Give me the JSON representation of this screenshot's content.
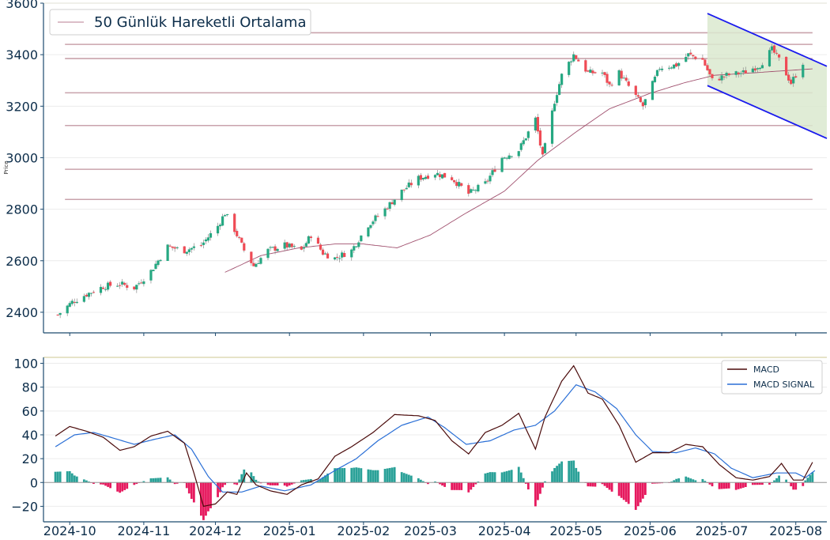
{
  "colors": {
    "up": "#26a882",
    "down": "#ef4b55",
    "wick": "#8a8a8a",
    "ma": "#a0506e",
    "hline": "#c9a3ac",
    "channel": "#1a1aee",
    "channel_fill": "#dbe9cf",
    "macd": "#4a0a0a",
    "signal": "#2a6fd6",
    "hist_pos": "#2aa198",
    "hist_neg": "#e6195e",
    "axis": "#1c4a6e",
    "grid": "#ececec",
    "top_border": "#d8d2a8"
  },
  "chart_data": [
    {
      "type": "candlestick",
      "title": "",
      "ylabel": "Price",
      "ylim": [
        2320,
        3600
      ],
      "yticks": [
        2400,
        2600,
        2800,
        3000,
        3200,
        3400,
        3600
      ],
      "xlim": [
        "2024-09-20",
        "2025-08-14"
      ],
      "legend": {
        "position": "top-left",
        "entries": [
          "50 Günlük Hareketli Ortalama"
        ]
      },
      "horizontal_levels": [
        3485,
        3440,
        3385,
        3252,
        3125,
        2955,
        2838
      ],
      "price_keypoints": [
        [
          "2024-09-26",
          2390
        ],
        [
          "2024-10-02",
          2440
        ],
        [
          "2024-10-08",
          2470
        ],
        [
          "2024-10-15",
          2500
        ],
        [
          "2024-10-22",
          2510
        ],
        [
          "2024-10-28",
          2495
        ],
        [
          "2024-11-04",
          2560
        ],
        [
          "2024-11-11",
          2655
        ],
        [
          "2024-11-18",
          2640
        ],
        [
          "2024-11-25",
          2660
        ],
        [
          "2024-12-02",
          2735
        ],
        [
          "2024-12-05",
          2785
        ],
        [
          "2024-12-09",
          2720
        ],
        [
          "2024-12-13",
          2640
        ],
        [
          "2024-12-17",
          2580
        ],
        [
          "2024-12-23",
          2640
        ],
        [
          "2024-12-30",
          2660
        ],
        [
          "2025-01-06",
          2640
        ],
        [
          "2025-01-10",
          2700
        ],
        [
          "2025-01-15",
          2630
        ],
        [
          "2025-01-20",
          2610
        ],
        [
          "2025-01-27",
          2640
        ],
        [
          "2025-02-03",
          2740
        ],
        [
          "2025-02-10",
          2800
        ],
        [
          "2025-02-17",
          2870
        ],
        [
          "2025-02-24",
          2920
        ],
        [
          "2025-03-03",
          2940
        ],
        [
          "2025-03-10",
          2920
        ],
        [
          "2025-03-17",
          2860
        ],
        [
          "2025-03-24",
          2900
        ],
        [
          "2025-03-31",
          3000
        ],
        [
          "2025-04-07",
          3030
        ],
        [
          "2025-04-14",
          3150
        ],
        [
          "2025-04-17",
          3000
        ],
        [
          "2025-04-22",
          3220
        ],
        [
          "2025-04-25",
          3320
        ],
        [
          "2025-04-30",
          3400
        ],
        [
          "2025-05-06",
          3330
        ],
        [
          "2025-05-12",
          3330
        ],
        [
          "2025-05-15",
          3280
        ],
        [
          "2025-05-19",
          3330
        ],
        [
          "2025-05-22",
          3290
        ],
        [
          "2025-05-29",
          3200
        ],
        [
          "2025-06-05",
          3350
        ],
        [
          "2025-06-12",
          3360
        ],
        [
          "2025-06-17",
          3400
        ],
        [
          "2025-06-23",
          3380
        ],
        [
          "2025-06-27",
          3300
        ],
        [
          "2025-07-03",
          3320
        ],
        [
          "2025-07-10",
          3330
        ],
        [
          "2025-07-17",
          3360
        ],
        [
          "2025-07-22",
          3420
        ],
        [
          "2025-07-25",
          3380
        ],
        [
          "2025-07-30",
          3290
        ],
        [
          "2025-08-04",
          3370
        ]
      ],
      "ma50_keypoints": [
        [
          "2024-12-05",
          2555
        ],
        [
          "2024-12-20",
          2620
        ],
        [
          "2025-01-05",
          2650
        ],
        [
          "2025-01-20",
          2665
        ],
        [
          "2025-02-01",
          2665
        ],
        [
          "2025-02-15",
          2650
        ],
        [
          "2025-03-01",
          2700
        ],
        [
          "2025-03-15",
          2780
        ],
        [
          "2025-04-01",
          2870
        ],
        [
          "2025-04-15",
          2990
        ],
        [
          "2025-05-01",
          3100
        ],
        [
          "2025-05-15",
          3190
        ],
        [
          "2025-06-01",
          3250
        ],
        [
          "2025-06-15",
          3290
        ],
        [
          "2025-06-28",
          3320
        ],
        [
          "2025-07-15",
          3330
        ],
        [
          "2025-07-31",
          3340
        ],
        [
          "2025-08-08",
          3345
        ]
      ],
      "channel": {
        "start": "2025-06-25",
        "end": "2025-08-14",
        "upper": [
          3560,
          3355
        ],
        "lower": [
          3280,
          3075
        ]
      }
    },
    {
      "type": "line",
      "title": "",
      "ylim": [
        -33,
        105
      ],
      "yticks": [
        -20,
        0,
        20,
        40,
        60,
        80,
        100
      ],
      "legend": {
        "position": "top-right"
      },
      "series": [
        {
          "name": "MACD",
          "keypoints": [
            [
              "2024-09-25",
              39
            ],
            [
              "2024-10-01",
              47
            ],
            [
              "2024-10-08",
              43
            ],
            [
              "2024-10-15",
              38
            ],
            [
              "2024-10-22",
              27
            ],
            [
              "2024-10-28",
              30
            ],
            [
              "2024-11-04",
              39
            ],
            [
              "2024-11-11",
              43
            ],
            [
              "2024-11-18",
              33
            ],
            [
              "2024-11-22",
              8
            ],
            [
              "2024-11-26",
              -20
            ],
            [
              "2024-12-01",
              -18
            ],
            [
              "2024-12-06",
              -8
            ],
            [
              "2024-12-10",
              -10
            ],
            [
              "2024-12-14",
              8
            ],
            [
              "2024-12-18",
              -2
            ],
            [
              "2024-12-24",
              -7
            ],
            [
              "2024-12-31",
              -10
            ],
            [
              "2025-01-06",
              -2
            ],
            [
              "2025-01-13",
              3
            ],
            [
              "2025-01-20",
              22
            ],
            [
              "2025-01-27",
              30
            ],
            [
              "2025-02-05",
              42
            ],
            [
              "2025-02-14",
              57
            ],
            [
              "2025-02-24",
              56
            ],
            [
              "2025-03-03",
              52
            ],
            [
              "2025-03-10",
              35
            ],
            [
              "2025-03-17",
              24
            ],
            [
              "2025-03-24",
              42
            ],
            [
              "2025-03-31",
              48
            ],
            [
              "2025-04-07",
              58
            ],
            [
              "2025-04-14",
              28
            ],
            [
              "2025-04-18",
              55
            ],
            [
              "2025-04-25",
              85
            ],
            [
              "2025-04-30",
              98
            ],
            [
              "2025-05-06",
              75
            ],
            [
              "2025-05-12",
              70
            ],
            [
              "2025-05-19",
              48
            ],
            [
              "2025-05-26",
              17
            ],
            [
              "2025-06-02",
              25
            ],
            [
              "2025-06-09",
              25
            ],
            [
              "2025-06-16",
              32
            ],
            [
              "2025-06-23",
              30
            ],
            [
              "2025-06-30",
              15
            ],
            [
              "2025-07-07",
              4
            ],
            [
              "2025-07-14",
              2
            ],
            [
              "2025-07-21",
              5
            ],
            [
              "2025-07-26",
              16
            ],
            [
              "2025-07-31",
              2
            ],
            [
              "2025-08-04",
              2
            ],
            [
              "2025-08-08",
              17
            ]
          ]
        },
        {
          "name": "MACD SIGNAL",
          "keypoints": [
            [
              "2024-09-25",
              30
            ],
            [
              "2024-10-03",
              40
            ],
            [
              "2024-10-11",
              42
            ],
            [
              "2024-10-18",
              38
            ],
            [
              "2024-10-28",
              32
            ],
            [
              "2024-11-05",
              36
            ],
            [
              "2024-11-14",
              40
            ],
            [
              "2024-11-21",
              28
            ],
            [
              "2024-11-28",
              5
            ],
            [
              "2024-12-04",
              -8
            ],
            [
              "2024-12-12",
              -8
            ],
            [
              "2024-12-20",
              -3
            ],
            [
              "2024-12-30",
              -7
            ],
            [
              "2025-01-10",
              -2
            ],
            [
              "2025-01-20",
              10
            ],
            [
              "2025-01-29",
              20
            ],
            [
              "2025-02-07",
              35
            ],
            [
              "2025-02-17",
              48
            ],
            [
              "2025-02-28",
              55
            ],
            [
              "2025-03-07",
              46
            ],
            [
              "2025-03-16",
              32
            ],
            [
              "2025-03-26",
              35
            ],
            [
              "2025-04-05",
              44
            ],
            [
              "2025-04-14",
              48
            ],
            [
              "2025-04-22",
              60
            ],
            [
              "2025-05-01",
              82
            ],
            [
              "2025-05-09",
              76
            ],
            [
              "2025-05-18",
              62
            ],
            [
              "2025-05-26",
              40
            ],
            [
              "2025-06-02",
              26
            ],
            [
              "2025-06-12",
              25
            ],
            [
              "2025-06-20",
              29
            ],
            [
              "2025-06-28",
              24
            ],
            [
              "2025-07-05",
              12
            ],
            [
              "2025-07-14",
              4
            ],
            [
              "2025-07-24",
              8
            ],
            [
              "2025-08-01",
              8
            ],
            [
              "2025-08-05",
              4
            ],
            [
              "2025-08-09",
              10
            ]
          ]
        }
      ],
      "histogram": "MACD - MACD SIGNAL"
    }
  ],
  "panels": {
    "price": {
      "legend_label": "50 Günlük Hareketli Ortalama",
      "ylabel": "Price",
      "ytick_labels": [
        "2400",
        "2600",
        "2800",
        "3000",
        "3200",
        "3400",
        "3600"
      ]
    },
    "macd": {
      "ytick_labels": [
        "−20",
        "0",
        "20",
        "40",
        "60",
        "80",
        "100"
      ],
      "legend": [
        "MACD",
        "MACD SIGNAL"
      ]
    },
    "xaxis": {
      "labels": [
        "2024-10",
        "2024-11",
        "2024-12",
        "2025-01",
        "2025-02",
        "2025-03",
        "2025-04",
        "2025-05",
        "2025-06",
        "2025-07",
        "2025-08"
      ]
    }
  }
}
